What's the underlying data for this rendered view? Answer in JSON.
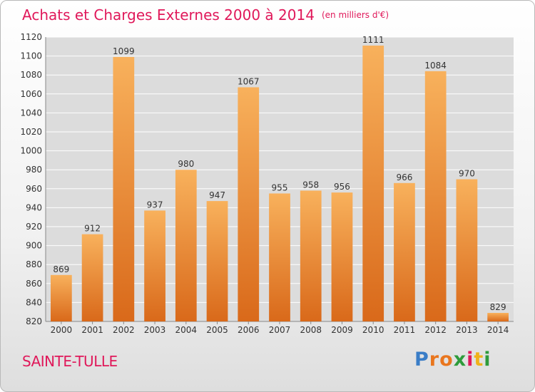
{
  "chart_data": {
    "type": "bar",
    "title": "Achats et Charges Externes 2000 à 2014",
    "subtitle": "(en milliers d'€)",
    "categories": [
      "2000",
      "2001",
      "2002",
      "2003",
      "2004",
      "2005",
      "2006",
      "2007",
      "2008",
      "2009",
      "2010",
      "2011",
      "2012",
      "2013",
      "2014"
    ],
    "values": [
      869,
      912,
      1099,
      937,
      980,
      947,
      1067,
      955,
      958,
      956,
      1111,
      966,
      1084,
      970,
      829
    ],
    "ylim": [
      820,
      1120
    ],
    "yticks": [
      820,
      840,
      860,
      880,
      900,
      920,
      940,
      960,
      980,
      1000,
      1020,
      1040,
      1060,
      1080,
      1100,
      1120
    ],
    "xlabel": "",
    "ylabel": "",
    "grid": true,
    "bar_color": "#f0912c",
    "bar_gradient": [
      "#f8b15c",
      "#d9691a"
    ],
    "grid_color": "#ffffff",
    "plot_bg": "#dcdcdc"
  },
  "commune": "SAINTE-TULLE",
  "logo": {
    "letters": [
      "P",
      "r",
      "o",
      "x",
      "i",
      "t",
      "i"
    ],
    "colors": [
      "#3a7dc7",
      "#e9761e",
      "#e9761e",
      "#2e9b3b",
      "#e0185a",
      "#f0b21a",
      "#2e9b3b"
    ]
  },
  "title_color": "#e0185a"
}
